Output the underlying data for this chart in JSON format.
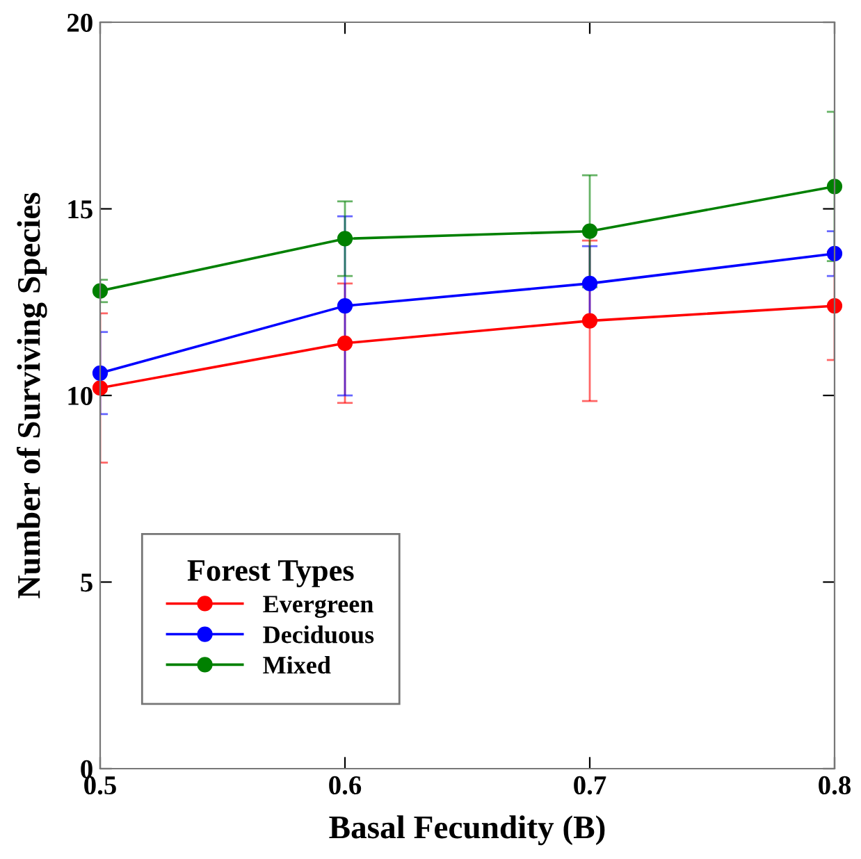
{
  "chart_data": {
    "type": "line",
    "xlabel": "Basal Fecundity (B)",
    "ylabel": "Number of Surviving Species",
    "legend_title": "Forest Types",
    "legend": "bottom left",
    "marker": "circle",
    "grid": false,
    "x": [
      0.5,
      0.6,
      0.7,
      0.8
    ],
    "xlim": [
      0.5,
      0.8
    ],
    "xticks": [
      0.5,
      0.6,
      0.7,
      0.8
    ],
    "ylim": [
      0,
      20
    ],
    "yticks": [
      0,
      5,
      10,
      15,
      20
    ],
    "series": [
      {
        "name": "Evergreen",
        "color": "#ff0000",
        "values": [
          10.2,
          11.4,
          12.0,
          12.4
        ],
        "errors": [
          2.0,
          1.6,
          2.15,
          1.45
        ]
      },
      {
        "name": "Deciduous",
        "color": "#0000ff",
        "values": [
          10.6,
          12.4,
          13.0,
          13.8
        ],
        "errors": [
          1.1,
          2.4,
          1.0,
          0.6
        ]
      },
      {
        "name": "Mixed",
        "color": "#008000",
        "values": [
          12.8,
          14.2,
          14.4,
          15.6
        ],
        "errors": [
          0.3,
          1.0,
          1.5,
          2.0
        ]
      }
    ]
  }
}
